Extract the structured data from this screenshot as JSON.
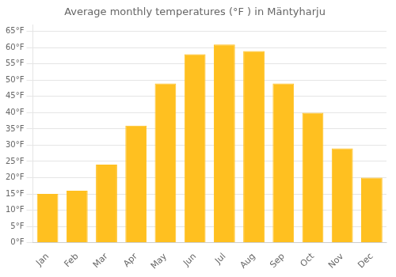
{
  "chart_data": {
    "type": "bar",
    "title": "Average monthly temperatures (°F ) in Mäntyharju",
    "categories": [
      "Jan",
      "Feb",
      "Mar",
      "Apr",
      "May",
      "Jun",
      "Jul",
      "Aug",
      "Sep",
      "Oct",
      "Nov",
      "Dec"
    ],
    "values": [
      15,
      16,
      24,
      36,
      49,
      58,
      61,
      59,
      49,
      40,
      29,
      20
    ],
    "color": "#FFC020",
    "ylim": [
      0,
      67
    ],
    "yticks": [
      {
        "value": 0,
        "label": "0°F"
      },
      {
        "value": 5,
        "label": "5°F"
      },
      {
        "value": 10,
        "label": "10°F"
      },
      {
        "value": 15,
        "label": "15°F"
      },
      {
        "value": 20,
        "label": "20°F"
      },
      {
        "value": 25,
        "label": "25°F"
      },
      {
        "value": 30,
        "label": "30°F"
      },
      {
        "value": 35,
        "label": "35°F"
      },
      {
        "value": 40,
        "label": "40°F"
      },
      {
        "value": 45,
        "label": "45°F"
      },
      {
        "value": 50,
        "label": "50°F"
      },
      {
        "value": 55,
        "label": "55°F"
      },
      {
        "value": 60,
        "label": "60°F"
      },
      {
        "value": 65,
        "label": "65°F"
      }
    ],
    "grid": true
  }
}
